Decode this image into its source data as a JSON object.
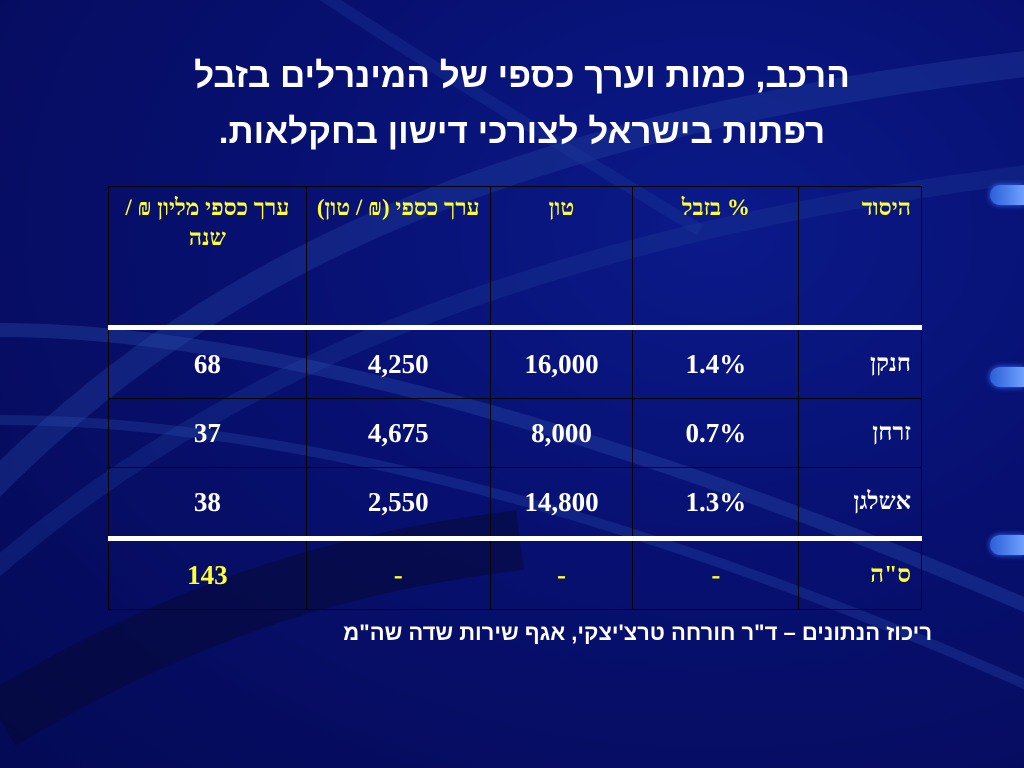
{
  "title": {
    "line1": "הרכב, כמות וערך כספי של המינרלים בזבל",
    "line2": "רפתות בישראל לצורכי דישון בחקלאות."
  },
  "table": {
    "headers": {
      "element": "היסוד",
      "percent": "% בזבל",
      "ton": "טון",
      "unit_value": "ערך כספי (₪ / טון)",
      "total_value": "ערך כספי מליון ₪ / שנה"
    },
    "rows": [
      {
        "element": "חנקן",
        "percent": "1.4%",
        "ton": "16,000",
        "unit_value": "4,250",
        "total_value": "68"
      },
      {
        "element": "זרחן",
        "percent": "0.7%",
        "ton": "8,000",
        "unit_value": "4,675",
        "total_value": "37"
      },
      {
        "element": "אשלגן",
        "percent": "1.3%",
        "ton": "14,800",
        "unit_value": "2,550",
        "total_value": "38"
      }
    ],
    "total": {
      "element": "ס\"ה",
      "percent": "-",
      "ton": "-",
      "unit_value": "-",
      "total_value": "143"
    }
  },
  "source": "ריכוז הנתונים – ד\"ר חורחה טרצ'יצקי, אגף שירות שדה  שה\"מ",
  "colors": {
    "background": "#071070",
    "header_text": "#ffff33",
    "body_text": "#ffffff",
    "accent_tab": "#4a7dff"
  }
}
